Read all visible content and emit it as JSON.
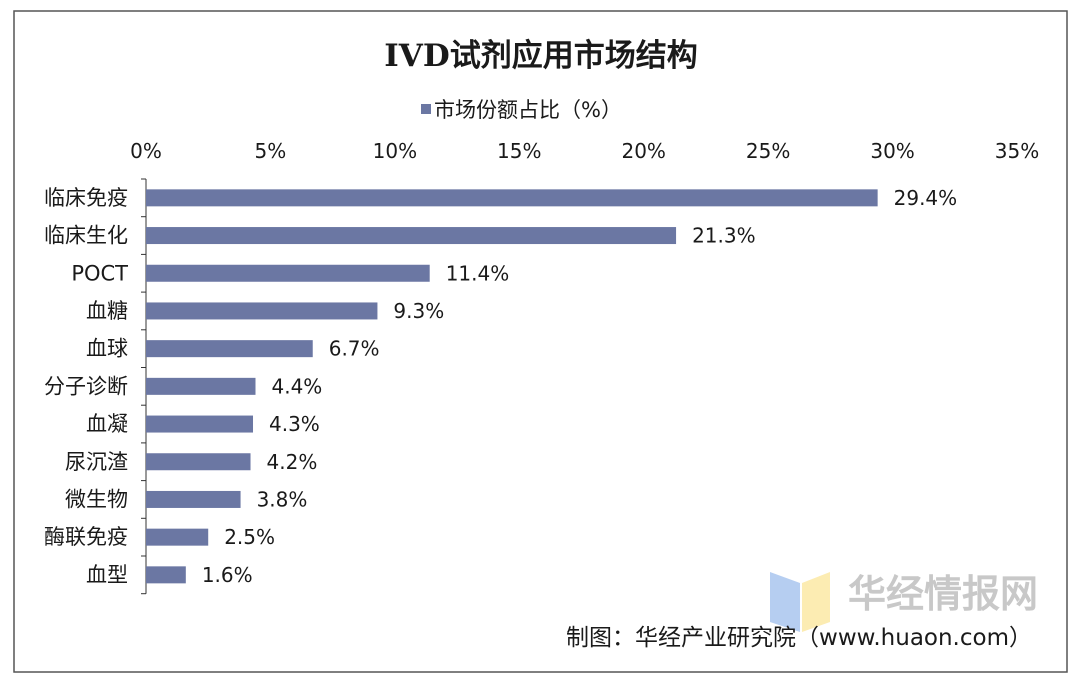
{
  "chart_data": {
    "type": "bar",
    "orientation": "horizontal",
    "title": "IVD试剂应用市场结构",
    "legend": {
      "entries": [
        "市场份额占比（%）"
      ],
      "placement": "top"
    },
    "categories": [
      "临床免疫",
      "临床生化",
      "POCT",
      "血糖",
      "血球",
      "分子诊断",
      "血凝",
      "尿沉渣",
      "微生物",
      "酶联免疫",
      "血型"
    ],
    "series": [
      {
        "name": "市场份额占比（%）",
        "values": [
          29.4,
          21.3,
          11.4,
          9.3,
          6.7,
          4.4,
          4.3,
          4.2,
          3.8,
          2.5,
          1.6
        ]
      }
    ],
    "data_labels": [
      "29.4%",
      "21.3%",
      "11.4%",
      "9.3%",
      "6.7%",
      "4.4%",
      "4.3%",
      "4.2%",
      "3.8%",
      "2.5%",
      "1.6%"
    ],
    "xlim": [
      0,
      35
    ],
    "x_ticks": [
      0,
      5,
      10,
      15,
      20,
      25,
      30,
      35
    ],
    "x_tick_labels": [
      "0%",
      "5%",
      "10%",
      "15%",
      "20%",
      "25%",
      "30%",
      "35%"
    ],
    "x_axis_position": "top",
    "grid": false,
    "bar_color": "#6b77a3"
  },
  "source": "制图：华经产业研究院（www.huaon.com）",
  "watermark": "华经情报网"
}
